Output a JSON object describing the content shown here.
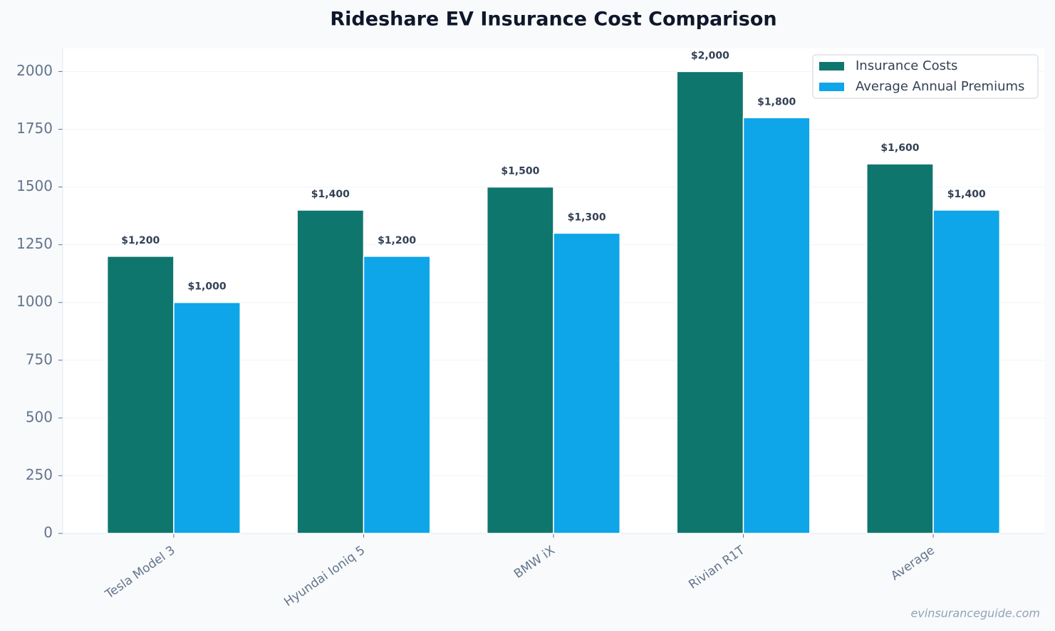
{
  "chart_data": {
    "type": "bar",
    "title": "Rideshare EV Insurance Cost Comparison",
    "categories": [
      "Tesla Model 3",
      "Hyundai Ioniq 5",
      "BMW iX",
      "Rivian R1T",
      "Average"
    ],
    "series": [
      {
        "name": "Insurance Costs",
        "color": "#0f766e",
        "values": [
          1200,
          1400,
          1500,
          2000,
          1600
        ],
        "value_labels": [
          "$1,200",
          "$1,400",
          "$1,500",
          "$2,000",
          "$1,600"
        ]
      },
      {
        "name": "Average Annual Premiums",
        "color": "#0ea5e9",
        "values": [
          1000,
          1200,
          1300,
          1800,
          1400
        ],
        "value_labels": [
          "$1,000",
          "$1,200",
          "$1,300",
          "$1,800",
          "$1,400"
        ]
      }
    ],
    "ylim": [
      0,
      2100
    ],
    "yticks": [
      0,
      250,
      500,
      750,
      1000,
      1250,
      1500,
      1750,
      2000
    ],
    "grid": true,
    "legend": "upper right",
    "watermark": "evinsuranceguide.com"
  }
}
